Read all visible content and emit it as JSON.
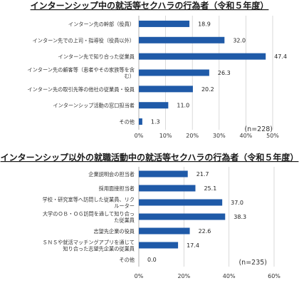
{
  "colors": {
    "bar": "#1f5aa8",
    "grid": "#d0d0d0",
    "text": "#333333"
  },
  "chart_data": [
    {
      "type": "bar",
      "orientation": "horizontal",
      "title": "インターンシップ中の就活等セクハラの行為者（令和５年度）",
      "categories": [
        [
          "インターン先の幹部（役員）"
        ],
        [
          "インターン先での上司・指導役（役員以外）"
        ],
        [
          "インターン先で知り合った従業員"
        ],
        [
          "インターン先の顧客等（患者やその家族等を含",
          "む）"
        ],
        [
          "インターン先の取引先等の他社の従業員・役員"
        ],
        [
          "インターンシップ活動の窓口担当者"
        ],
        [
          "その他"
        ]
      ],
      "values": [
        18.9,
        32.0,
        47.4,
        26.3,
        20.2,
        11.0,
        1.3
      ],
      "value_labels": [
        "18.9",
        "32.0",
        "47.4",
        "26.3",
        "20.2",
        "11.0",
        "1.3"
      ],
      "xlim": [
        0,
        50
      ],
      "ticks": [
        "0%",
        "10%",
        "20%",
        "30%",
        "40%",
        "50%"
      ],
      "grid": true,
      "note": "(n=228)"
    },
    {
      "type": "bar",
      "orientation": "horizontal",
      "title": "インターンシップ以外の就職活動中の就活等セクハラの行為者（令和５年度）",
      "categories": [
        [
          "企業説明会の担当者"
        ],
        [
          "採用面接担当者"
        ],
        [
          "学校・研究室等へ訪問した従業員、リク",
          "ルーター"
        ],
        [
          "大学のＯＢ・ＯＧ訪問を通して知り合っ",
          "た従業員"
        ],
        [
          "志望先企業の役員"
        ],
        [
          "ＳＮＳや就活マッチングアプリを通じて",
          "知り合った志望先企業の従業員"
        ],
        [
          "その他"
        ]
      ],
      "values": [
        21.7,
        25.1,
        37.0,
        38.3,
        22.6,
        17.4,
        0.0
      ],
      "value_labels": [
        "21.7",
        "25.1",
        "37.0",
        "38.3",
        "22.6",
        "17.4",
        "0.0"
      ],
      "xlim": [
        0,
        60
      ],
      "ticks": [
        "0%",
        "20%",
        "40%",
        "60%"
      ],
      "grid": true,
      "note": "(n=235)"
    }
  ]
}
